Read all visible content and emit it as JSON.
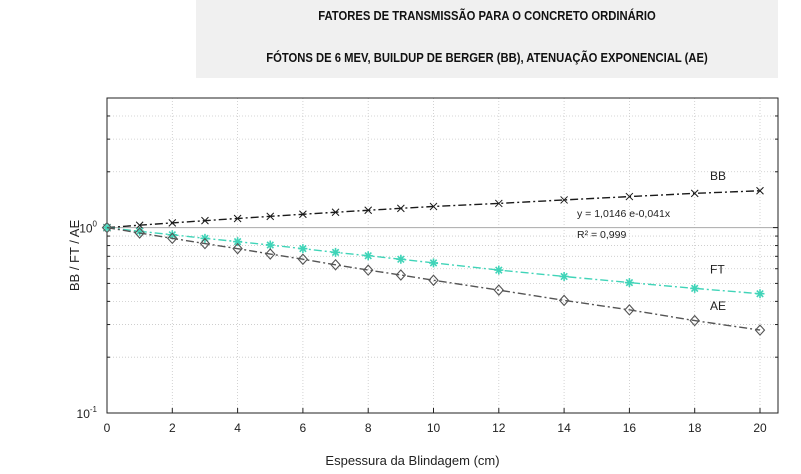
{
  "chart_data": {
    "type": "line",
    "title": "FATORES DE TRANSMISSÃO PARA O CONCRETO ORDINÁRIO",
    "subtitle": "FÓTONS DE 6 MEV, BUILDUP DE BERGER (BB), ATENUAÇÃO EXPONENCIAL (AE)",
    "xlabel": "Espessura da Blindagem (cm)",
    "ylabel": "BB / FT / AE",
    "y_scale": "log",
    "xlim": [
      0,
      20
    ],
    "ylim": [
      0.1,
      5
    ],
    "x_ticks": [
      0,
      2,
      4,
      6,
      8,
      10,
      12,
      14,
      16,
      18,
      20
    ],
    "x_tick_labels": [
      "0",
      "2",
      "4",
      "6",
      "8",
      "10",
      "12",
      "14",
      "16",
      "18",
      "20"
    ],
    "y_tick_labels": [
      {
        "value": 1,
        "base": "10",
        "exp": "0"
      },
      {
        "value": 0.1,
        "base": "10",
        "exp": "-1"
      }
    ],
    "grid": true,
    "series": [
      {
        "name": "BB",
        "color": "#1a1a1a",
        "marker": "x",
        "dash": "8,3,2,3",
        "x": [
          0,
          1,
          2,
          3,
          4,
          5,
          6,
          7,
          8,
          9,
          10,
          12,
          14,
          16,
          18,
          20
        ],
        "values": [
          1.0,
          1.03,
          1.06,
          1.09,
          1.12,
          1.15,
          1.18,
          1.21,
          1.24,
          1.27,
          1.3,
          1.35,
          1.41,
          1.47,
          1.53,
          1.58
        ]
      },
      {
        "name": "FT",
        "color": "#40d4b8",
        "marker": "asterisk",
        "dash": "8,3,2,3",
        "x": [
          0,
          1,
          2,
          3,
          4,
          5,
          6,
          7,
          8,
          9,
          10,
          12,
          14,
          16,
          18,
          20
        ],
        "values": [
          1.0,
          0.955,
          0.915,
          0.875,
          0.84,
          0.805,
          0.77,
          0.735,
          0.705,
          0.675,
          0.645,
          0.59,
          0.545,
          0.505,
          0.47,
          0.44
        ]
      },
      {
        "name": "AE",
        "color": "#555555",
        "marker": "diamond",
        "dash": "8,3,2,3",
        "x": [
          0,
          1,
          2,
          3,
          4,
          5,
          6,
          7,
          8,
          9,
          10,
          12,
          14,
          16,
          18,
          20
        ],
        "values": [
          1.0,
          0.935,
          0.875,
          0.82,
          0.77,
          0.72,
          0.675,
          0.63,
          0.59,
          0.555,
          0.52,
          0.46,
          0.405,
          0.36,
          0.315,
          0.28
        ]
      }
    ],
    "annotations": {
      "equation": "y = 1,0146 e-0,041x",
      "r_squared": "R² = 0,999"
    }
  }
}
